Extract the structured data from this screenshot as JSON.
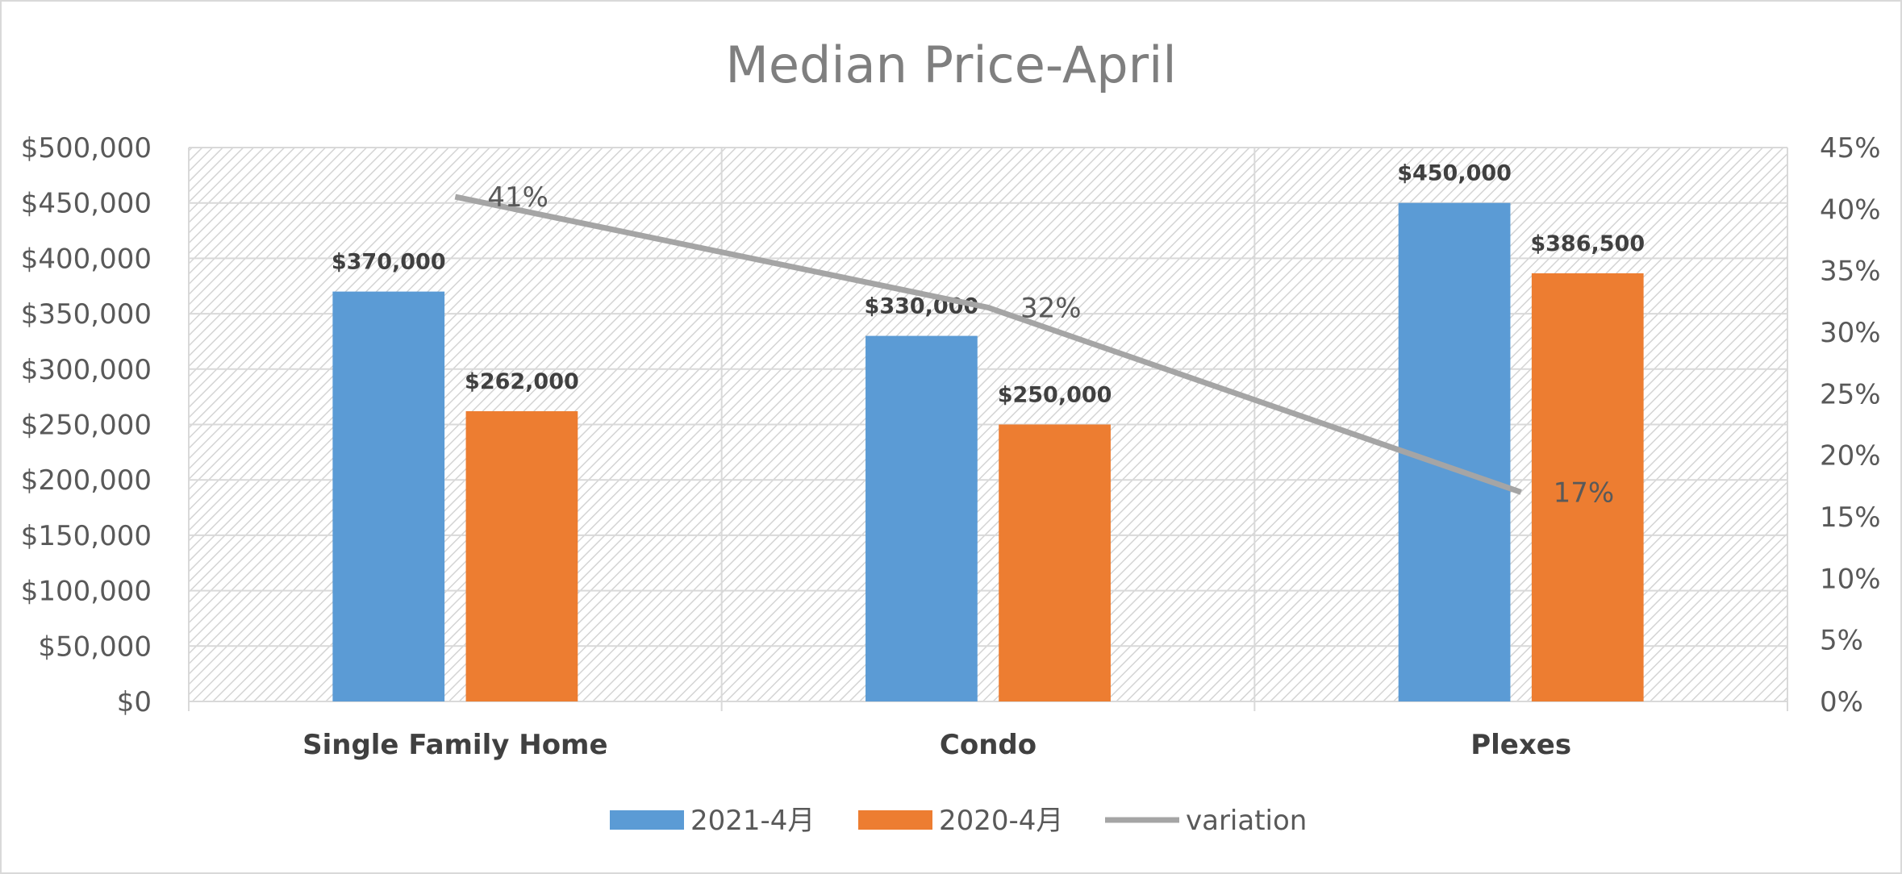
{
  "chart_data": {
    "type": "bar",
    "title": "Median Price-April",
    "categories": [
      "Single Family Home",
      "Condo",
      "Plexes"
    ],
    "series": [
      {
        "name": "2021-4月",
        "kind": "bar",
        "color": "#5b9bd5",
        "values": [
          370000,
          330000,
          450000
        ],
        "labels": [
          "$370,000",
          "$330,000",
          "$450,000"
        ]
      },
      {
        "name": "2020-4月",
        "kind": "bar",
        "color": "#ed7d31",
        "values": [
          262000,
          250000,
          386500
        ],
        "labels": [
          "$262,000",
          "$250,000",
          "$386,500"
        ]
      },
      {
        "name": "variation",
        "kind": "line",
        "axis": "secondary",
        "color": "#a5a5a5",
        "values": [
          41,
          32,
          17
        ],
        "labels": [
          "41%",
          "32%",
          "17%"
        ]
      }
    ],
    "y_left": {
      "ylim": [
        0,
        500000
      ],
      "ticks": [
        "$0",
        "$50,000",
        "$100,000",
        "$150,000",
        "$200,000",
        "$250,000",
        "$300,000",
        "$350,000",
        "$400,000",
        "$450,000",
        "$500,000"
      ]
    },
    "y_right": {
      "ylim": [
        0,
        45
      ],
      "ticks": [
        "0%",
        "5%",
        "10%",
        "15%",
        "20%",
        "25%",
        "30%",
        "35%",
        "40%",
        "45%"
      ]
    },
    "grid": true,
    "legend": "bottom"
  }
}
